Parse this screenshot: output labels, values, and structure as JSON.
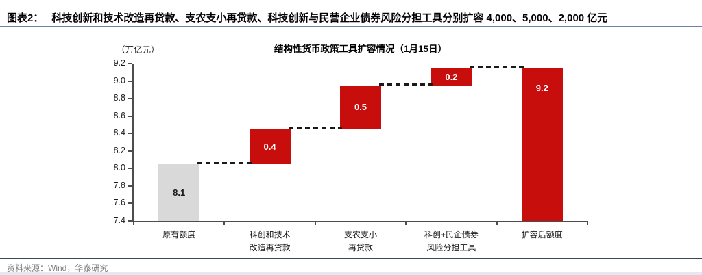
{
  "header": {
    "tag": "图表2：",
    "title": "科技创新和技术改造再贷款、支农支小再贷款、科技创新与民营企业债券风险分担工具分别扩容 4,000、5,000、2,000 亿元"
  },
  "footer": {
    "source": "资料来源：Wind，华泰研究"
  },
  "colors": {
    "bar_red": "#C80D0D",
    "bar_gray": "#D9D9D9",
    "bar_label_on_red": "#FFFFFF",
    "bar_label_on_gray": "#1A1A1A",
    "connector": "#1A1A1A",
    "axis": "#4D4D4D",
    "header_divider": "#6E81A3",
    "footer_divider": "#3E4757",
    "source_text": "#7F7F7F"
  },
  "chart_data": {
    "type": "bar",
    "subtype": "waterfall",
    "title": "结构性货币政策工具扩容情况（1月15日）",
    "unit_label": "（万亿元）",
    "xlabel": "",
    "ylabel": "（万亿元）",
    "ylim": [
      7.4,
      9.2
    ],
    "yticks": [
      "9.2",
      "9.0",
      "8.8",
      "8.6",
      "8.4",
      "8.2",
      "8.0",
      "7.8",
      "7.6",
      "7.4"
    ],
    "grid": false,
    "legend": false,
    "connector_style": "dashed",
    "categories": [
      "原有额度",
      "科创和技术\n改造再贷款",
      "支农支小\n再贷款",
      "科创+民企债券\n风险分担工具",
      "扩容后额度"
    ],
    "bars": [
      {
        "category": "原有额度",
        "label": "8.1",
        "start": 7.4,
        "end": 8.05,
        "role": "base",
        "color": "gray"
      },
      {
        "category": "科创和技术\n改造再贷款",
        "label": "0.4",
        "start": 8.05,
        "end": 8.45,
        "role": "increment",
        "color": "red"
      },
      {
        "category": "支农支小\n再贷款",
        "label": "0.5",
        "start": 8.45,
        "end": 8.95,
        "role": "increment",
        "color": "red"
      },
      {
        "category": "科创+民企债券\n风险分担工具",
        "label": "0.2",
        "start": 8.95,
        "end": 9.15,
        "role": "increment",
        "color": "red"
      },
      {
        "category": "扩容后额度",
        "label": "9.2",
        "start": 7.4,
        "end": 9.15,
        "role": "total",
        "color": "red"
      }
    ]
  }
}
